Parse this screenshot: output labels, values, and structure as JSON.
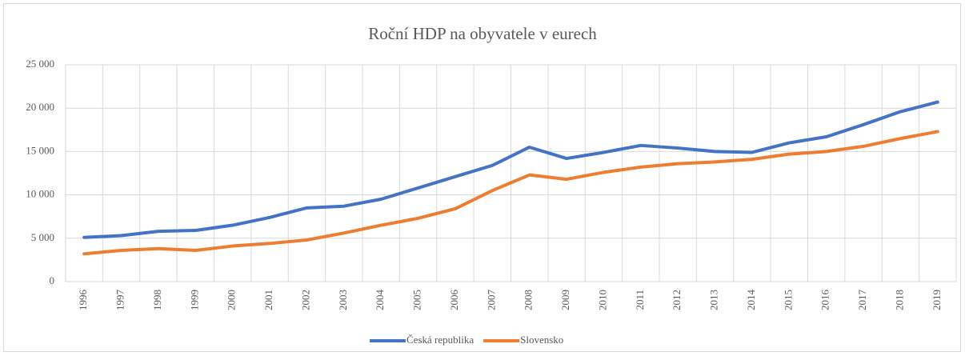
{
  "chart_data": {
    "type": "line",
    "title": "Roční HDP na obyvatele  v eurech",
    "categories": [
      "1996",
      "1997",
      "1998",
      "1999",
      "2000",
      "2001",
      "2002",
      "2003",
      "2004",
      "2005",
      "2006",
      "2007",
      "2008",
      "2009",
      "2010",
      "2011",
      "2012",
      "2013",
      "2014",
      "2015",
      "2016",
      "2017",
      "2018",
      "2019"
    ],
    "series": [
      {
        "name": "Česká republika",
        "color": "#4472c4",
        "values": [
          5100,
          5300,
          5800,
          5900,
          6500,
          7400,
          8500,
          8700,
          9500,
          10800,
          12100,
          13400,
          15500,
          14200,
          14900,
          15700,
          15400,
          15000,
          14900,
          16000,
          16700,
          18100,
          19600,
          20700
        ]
      },
      {
        "name": "Slovensko",
        "color": "#ed7d31",
        "values": [
          3200,
          3600,
          3800,
          3600,
          4100,
          4400,
          4800,
          5600,
          6500,
          7300,
          8400,
          10500,
          12300,
          11800,
          12600,
          13200,
          13600,
          13800,
          14100,
          14700,
          15000,
          15600,
          16500,
          17300
        ]
      }
    ],
    "ylim": [
      0,
      25000
    ],
    "yticks": [
      0,
      {
        "value": 5000,
        "label": "5 000"
      },
      {
        "value": 10000,
        "label": "10 000"
      },
      {
        "value": 15000,
        "label": "15 000"
      },
      {
        "value": 20000,
        "label": "20 000"
      },
      {
        "value": 25000,
        "label": "25 000"
      }
    ],
    "grid": true,
    "legend": "bottom"
  }
}
